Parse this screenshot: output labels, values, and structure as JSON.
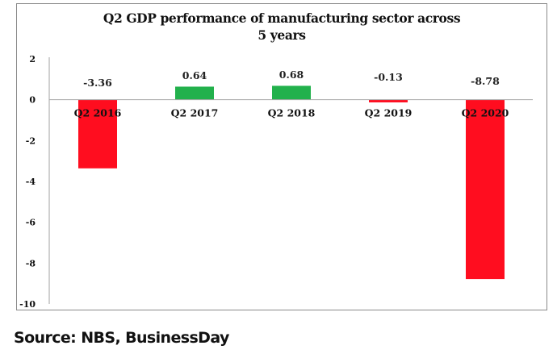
{
  "chart_data": {
    "type": "bar",
    "title": "Q2 GDP performance of manufacturing sector across 5 years",
    "title_lines": [
      "Q2 GDP performance of manufacturing sector across",
      "5 years"
    ],
    "categories": [
      "Q2 2016",
      "Q2 2017",
      "Q2 2018",
      "Q2 2019",
      "Q2 2020"
    ],
    "values": [
      -3.36,
      0.64,
      0.68,
      -0.13,
      -8.78
    ],
    "data_labels": [
      "-3.36",
      "0.64",
      "0.68",
      "-0.13",
      "-8.78"
    ],
    "colors": {
      "positive": "#22b14c",
      "negative": "#ff0d1f"
    },
    "xlabel": "",
    "ylabel": "",
    "ylim": [
      -10,
      2
    ],
    "yticks": [
      2,
      0,
      -2,
      -4,
      -6,
      -8,
      -10
    ],
    "ytick_labels": [
      "2",
      "0",
      "-2",
      "-4",
      "-6",
      "-8",
      "-10"
    ],
    "grid": false,
    "legend": "none"
  },
  "source": "Source: NBS, BusinessDay"
}
